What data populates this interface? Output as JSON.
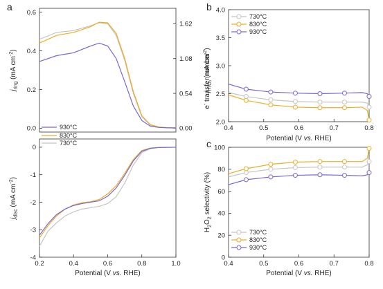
{
  "panel_letters": {
    "a": "a",
    "b": "b",
    "c": "c"
  },
  "colors": {
    "730": "#c4c4c4",
    "830": "#efac22",
    "930": "#7566d6"
  },
  "chart_data": [
    {
      "id": "a_top",
      "type": "line",
      "title": "",
      "xlabel": "",
      "ylabel": "j_ring (mA cm^-2)",
      "ylabel_parts": {
        "main": "j",
        "sub": "ring",
        "rest": " (mA cm",
        "sup": "-2",
        "close": ")"
      },
      "y2label": "j_H2O2 (mA cm^-2)",
      "y2label_parts": {
        "main": "j",
        "sub": "H₂O₂",
        "rest": " (mA cm",
        "sup": "-2",
        "close": ")"
      },
      "xlim": [
        0.2,
        1.0
      ],
      "ylim": [
        -0.02,
        0.62
      ],
      "y2lim": [
        -0.06,
        1.86
      ],
      "yticks": [
        0.0,
        0.2,
        0.4,
        0.6
      ],
      "ytick_labels": [
        "0.0",
        "0.2",
        "0.4",
        "0.6"
      ],
      "y2ticks": [
        0.0,
        0.54,
        1.08,
        1.62
      ],
      "y2tick_labels": [
        "0.00",
        "0.54",
        "1.08",
        "1.62"
      ],
      "legend": {
        "position": "bottom-left",
        "entries": [
          "930°C"
        ]
      },
      "x": [
        0.2,
        0.3,
        0.4,
        0.5,
        0.55,
        0.6,
        0.65,
        0.7,
        0.75,
        0.8,
        0.85,
        0.9,
        0.95,
        1.0
      ],
      "series": [
        {
          "name": "730°C",
          "key": "730",
          "values": [
            0.46,
            0.495,
            0.505,
            0.53,
            0.545,
            0.54,
            0.48,
            0.35,
            0.18,
            0.06,
            0.015,
            0.005,
            0.003,
            0.002
          ]
        },
        {
          "name": "830°C",
          "key": "830",
          "values": [
            0.44,
            0.48,
            0.495,
            0.525,
            0.548,
            0.545,
            0.49,
            0.36,
            0.19,
            0.065,
            0.018,
            0.006,
            0.003,
            0.002
          ]
        },
        {
          "name": "930°C",
          "key": "930",
          "values": [
            0.345,
            0.375,
            0.39,
            0.425,
            0.44,
            0.425,
            0.36,
            0.24,
            0.115,
            0.04,
            0.01,
            0.004,
            0.002,
            0.001
          ]
        }
      ]
    },
    {
      "id": "a_bottom",
      "type": "line",
      "xlabel": "Potential (V vs. RHE)",
      "xlabel_parts": {
        "pre": "Potential (V ",
        "em": "vs.",
        "post": " RHE)"
      },
      "ylabel": "j_disc (mA cm^-2)",
      "ylabel_parts": {
        "main": "j",
        "sub": "disc",
        "rest": " (mA cm",
        "sup": "-2",
        "close": ")"
      },
      "xlim": [
        0.2,
        1.0
      ],
      "ylim": [
        -4.0,
        0.3
      ],
      "xticks": [
        0.2,
        0.4,
        0.6,
        0.8,
        1.0
      ],
      "xtick_labels": [
        "0.2",
        "0.4",
        "0.6",
        "0.8",
        "1.0"
      ],
      "yticks": [
        -4,
        -3,
        -2,
        -1,
        0
      ],
      "ytick_labels": [
        "-4",
        "-3",
        "-2",
        "-1",
        "0"
      ],
      "legend": {
        "position": "top-left",
        "entries": [
          "830°C",
          "730°C"
        ]
      },
      "x": [
        0.2,
        0.25,
        0.3,
        0.35,
        0.4,
        0.45,
        0.5,
        0.55,
        0.6,
        0.65,
        0.7,
        0.75,
        0.8,
        0.85,
        0.9,
        1.0
      ],
      "series": [
        {
          "name": "730°C",
          "key": "730",
          "values": [
            -3.6,
            -3.05,
            -2.75,
            -2.5,
            -2.35,
            -2.25,
            -2.2,
            -2.15,
            -2.05,
            -1.8,
            -1.3,
            -0.65,
            -0.2,
            -0.05,
            -0.01,
            0.0
          ]
        },
        {
          "name": "830°C",
          "key": "830",
          "values": [
            -3.3,
            -2.85,
            -2.5,
            -2.25,
            -2.1,
            -2.02,
            -1.98,
            -1.9,
            -1.7,
            -1.4,
            -0.95,
            -0.45,
            -0.12,
            -0.03,
            -0.01,
            0.0
          ]
        },
        {
          "name": "930°C",
          "key": "930",
          "values": [
            -3.2,
            -2.78,
            -2.45,
            -2.25,
            -2.12,
            -2.05,
            -2.0,
            -1.95,
            -1.78,
            -1.48,
            -1.02,
            -0.5,
            -0.15,
            -0.04,
            -0.01,
            0.0
          ]
        }
      ]
    },
    {
      "id": "b",
      "type": "line",
      "xlabel": "Potential (V vs. RHE)",
      "xlabel_parts": {
        "pre": "Potential (V ",
        "em": "vs.",
        "post": " RHE)"
      },
      "ylabel": "e- transfer number",
      "ylabel_parts": {
        "pre": "e",
        "sup": "-",
        "post": " transfer number"
      },
      "xlim": [
        0.4,
        0.8
      ],
      "ylim": [
        2.0,
        4.0
      ],
      "xticks": [
        0.4,
        0.5,
        0.6,
        0.7,
        0.8
      ],
      "xtick_labels": [
        "0.4",
        "0.5",
        "0.6",
        "0.7",
        "0.8"
      ],
      "yticks": [
        2.0,
        2.5,
        3.0,
        3.5,
        4.0
      ],
      "ytick_labels": [
        "2.0",
        "2.5",
        "3.0",
        "3.5",
        "4.0"
      ],
      "legend": {
        "position": "top-left",
        "entries": [
          "730°C",
          "830°C",
          "930°C"
        ]
      },
      "x": [
        0.4,
        0.45,
        0.52,
        0.59,
        0.66,
        0.73,
        0.78,
        0.795,
        0.8
      ],
      "markers_x": [
        0.45,
        0.52,
        0.59,
        0.66,
        0.73,
        0.8
      ],
      "series": [
        {
          "name": "730°C",
          "key": "730",
          "values": [
            2.52,
            2.45,
            2.39,
            2.36,
            2.35,
            2.35,
            2.35,
            2.33,
            2.26
          ]
        },
        {
          "name": "830°C",
          "key": "830",
          "values": [
            2.48,
            2.38,
            2.3,
            2.26,
            2.25,
            2.25,
            2.26,
            2.2,
            2.03
          ]
        },
        {
          "name": "930°C",
          "key": "930",
          "values": [
            2.67,
            2.58,
            2.53,
            2.51,
            2.5,
            2.51,
            2.52,
            2.5,
            2.45
          ]
        }
      ]
    },
    {
      "id": "c",
      "type": "line",
      "xlabel": "Potential (V vs. RHE)",
      "xlabel_parts": {
        "pre": "Potential (V ",
        "em": "vs.",
        "post": " RHE)"
      },
      "ylabel": "H2O2 selectivity (%)",
      "ylabel_parts": {
        "pre": "H",
        "sub1": "2",
        "mid": "O",
        "sub2": "2",
        "post": " selectivity (%)"
      },
      "xlim": [
        0.4,
        0.8
      ],
      "ylim": [
        0,
        100
      ],
      "xticks": [
        0.4,
        0.5,
        0.6,
        0.7,
        0.8
      ],
      "xtick_labels": [
        "0.4",
        "0.5",
        "0.6",
        "0.7",
        "0.8"
      ],
      "yticks": [
        0,
        20,
        40,
        60,
        80,
        100
      ],
      "ytick_labels": [
        "0",
        "20",
        "40",
        "60",
        "80",
        "100"
      ],
      "legend": {
        "position": "bottom-left",
        "entries": [
          "730°C",
          "830°C",
          "930°C"
        ]
      },
      "x": [
        0.4,
        0.45,
        0.52,
        0.59,
        0.66,
        0.73,
        0.78,
        0.795,
        0.8
      ],
      "markers_x": [
        0.45,
        0.52,
        0.59,
        0.66,
        0.73,
        0.8
      ],
      "series": [
        {
          "name": "730°C",
          "key": "730",
          "values": [
            73,
            77,
            80,
            81.5,
            82,
            82,
            82,
            84,
            87
          ]
        },
        {
          "name": "830°C",
          "key": "830",
          "values": [
            76,
            80.5,
            84.5,
            86.5,
            87,
            87,
            87,
            90,
            99
          ]
        },
        {
          "name": "930°C",
          "key": "930",
          "values": [
            66,
            70.5,
            73,
            74.5,
            75,
            74.5,
            74,
            75,
            77
          ]
        }
      ]
    }
  ]
}
